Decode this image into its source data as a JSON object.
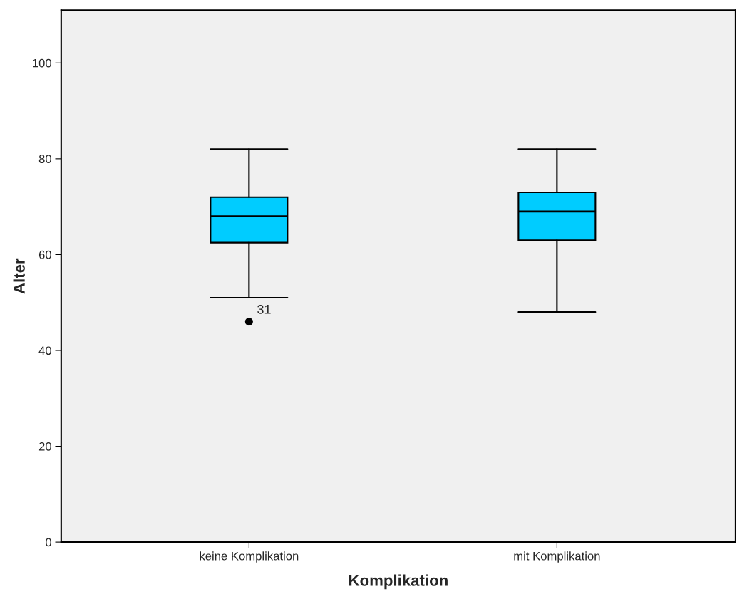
{
  "chart_data": {
    "type": "box",
    "xlabel": "Komplikation",
    "ylabel": "Alter",
    "categories": [
      "keine Komplikation",
      "mit Komplikation"
    ],
    "boxes": [
      {
        "low": 51,
        "q1": 62.5,
        "median": 68,
        "q3": 72,
        "high": 82,
        "outliers": [
          46
        ]
      },
      {
        "low": 48,
        "q1": 63,
        "median": 69,
        "q3": 73,
        "high": 82
      }
    ],
    "color": "#00ccff",
    "annotations": [
      "31"
    ],
    "ylim": [
      0,
      111
    ],
    "yticks": [
      0,
      20,
      40,
      60,
      80,
      100
    ],
    "grid": false,
    "legend": false
  }
}
